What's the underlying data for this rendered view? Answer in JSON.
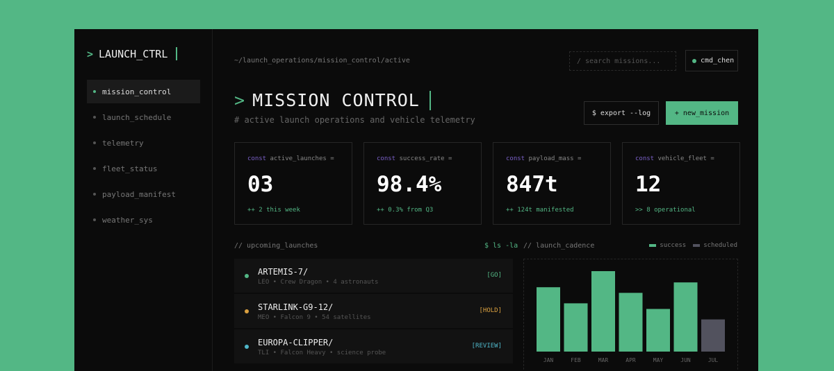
{
  "sidebar": {
    "logo_prompt": ">",
    "logo": "LAUNCH_CTRL",
    "items": [
      {
        "label": "mission_control",
        "active": true
      },
      {
        "label": "launch_schedule"
      },
      {
        "label": "telemetry"
      },
      {
        "label": "fleet_status"
      },
      {
        "label": "payload_manifest"
      },
      {
        "label": "weather_sys"
      }
    ]
  },
  "header": {
    "breadcrumb": "~/launch_operations/mission_control/active",
    "search_placeholder": "/ search missions...",
    "user": "cmd_chen"
  },
  "page": {
    "prompt": ">",
    "title": "MISSION CONTROL",
    "subtitle": "# active launch operations and vehicle telemetry",
    "export_label": "$ export --log",
    "new_label": "+ new_mission"
  },
  "stats": [
    {
      "kw": "const",
      "name": "active_launches =",
      "value": "03",
      "delta": "++ 2 this week"
    },
    {
      "kw": "const",
      "name": "success_rate =",
      "value": "98.4%",
      "delta": "++ 0.3% from Q3"
    },
    {
      "kw": "const",
      "name": "payload_mass =",
      "value": "847t",
      "delta": "++ 124t manifested"
    },
    {
      "kw": "const",
      "name": "vehicle_fleet =",
      "value": "12",
      "delta": ">> 8 operational"
    }
  ],
  "launches": {
    "title": "// upcoming_launches",
    "command": "$ ls -la",
    "items": [
      {
        "name": "ARTEMIS-7/",
        "meta": "LEO • Crew Dragon • 4 astronauts",
        "status": "[GO]",
        "color": "#53b785"
      },
      {
        "name": "STARLINK-G9-12/",
        "meta": "MEO • Falcon 9 • 54 satellites",
        "status": "[HOLD]",
        "color": "#d9a040"
      },
      {
        "name": "EUROPA-CLIPPER/",
        "meta": "TLI • Falcon Heavy • science probe",
        "status": "[REVIEW]",
        "color": "#4fb7c9"
      }
    ]
  },
  "cadence": {
    "title": "// launch_cadence",
    "legend": [
      "success",
      "scheduled"
    ]
  },
  "chart_data": {
    "type": "bar",
    "categories": [
      "JAN",
      "FEB",
      "MAR",
      "APR",
      "MAY",
      "JUN",
      "JUL"
    ],
    "values": [
      80,
      60,
      100,
      73,
      53,
      86,
      40
    ],
    "series_kind": [
      "success",
      "success",
      "success",
      "success",
      "success",
      "success",
      "scheduled"
    ],
    "colors": {
      "success": "#53b785",
      "scheduled": "#52525e"
    },
    "legend": "top-right",
    "grid": false
  }
}
